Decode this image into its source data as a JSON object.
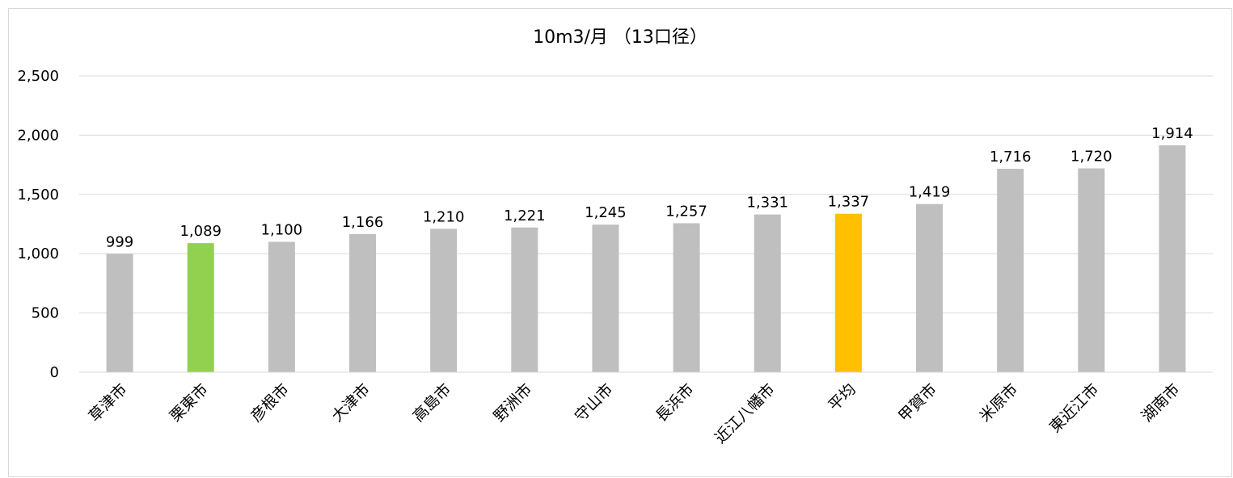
{
  "chart_data": {
    "type": "bar",
    "title": "10m3/月 （13口径）",
    "xlabel": "",
    "ylabel": "",
    "ylim": [
      0,
      2500
    ],
    "yticks": [
      0,
      500,
      1000,
      1500,
      2000,
      2500
    ],
    "ytick_labels": [
      "0",
      "500",
      "1,000",
      "1,500",
      "2,000",
      "2,500"
    ],
    "grid": true,
    "legend": "none",
    "categories": [
      "草津市",
      "栗東市",
      "彦根市",
      "大津市",
      "高島市",
      "野洲市",
      "守山市",
      "長浜市",
      "近江八幡市",
      "平均",
      "甲賀市",
      "米原市",
      "東近江市",
      "湖南市"
    ],
    "values": [
      999,
      1089,
      1100,
      1166,
      1210,
      1221,
      1245,
      1257,
      1331,
      1337,
      1419,
      1716,
      1720,
      1914
    ],
    "data_labels": [
      "999",
      "1,089",
      "1,100",
      "1,166",
      "1,210",
      "1,221",
      "1,245",
      "1,257",
      "1,331",
      "1,337",
      "1,419",
      "1,716",
      "1,720",
      "1,914"
    ],
    "colors": {
      "default": "#bfbfbf",
      "highlight_ritto": "#92d050",
      "highlight_average": "#ffc000",
      "grid": "#d9d9d9",
      "axis": "#d9d9d9"
    },
    "bar_colors": [
      "#bfbfbf",
      "#92d050",
      "#bfbfbf",
      "#bfbfbf",
      "#bfbfbf",
      "#bfbfbf",
      "#bfbfbf",
      "#bfbfbf",
      "#bfbfbf",
      "#ffc000",
      "#bfbfbf",
      "#bfbfbf",
      "#bfbfbf",
      "#bfbfbf"
    ]
  }
}
